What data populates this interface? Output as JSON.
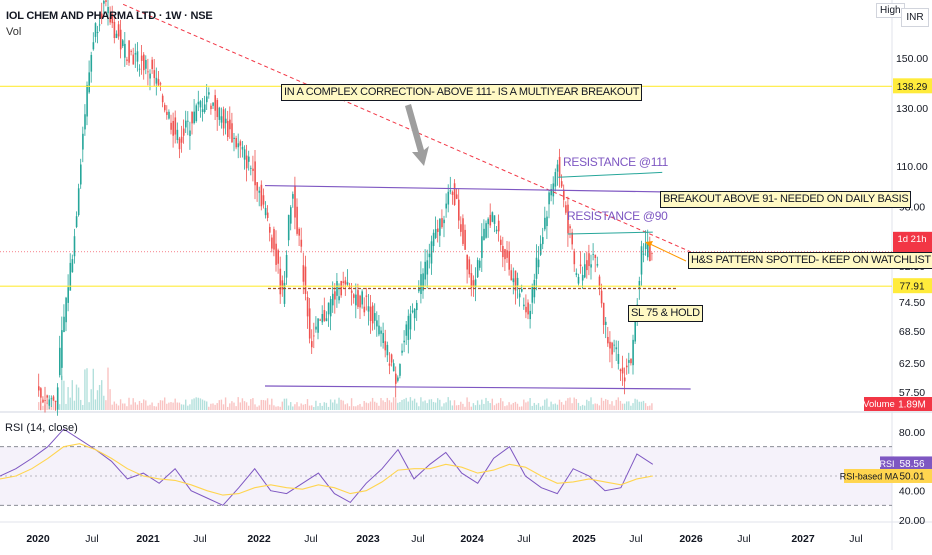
{
  "header": {
    "symbol": "IOL CHEM AND PHARMA LTD · 1W · NSE",
    "volume_label": "Vol",
    "rsi_label": "RSI (14, close)",
    "high_toggle": "High",
    "currency": "INR"
  },
  "annotations": {
    "correction": "IN A COMPLEX CORRECTION- ABOVE 111- IS A MULTIYEAR BREAKOUT",
    "resistance_111": "RESISTANCE @111",
    "breakout": "BREAKOUT ABOVE 91- NEEDED ON DAILY BASIS",
    "resistance_90": "RESISTANCE @90",
    "hs_pattern": "H&S PATTERN SPOTTED- KEEP ON WATCHLIST",
    "stop_loss": "SL 75 & HOLD"
  },
  "badges": {
    "price_tag": "1d 21h",
    "volume_tag": "Volume",
    "volume_value": "1.89M",
    "rsi_tag": "RSI",
    "rsi_value": "58.56",
    "rsi_ma_tag": "RSI-based MA",
    "rsi_ma_value": "50.01",
    "level_upper": "138.29",
    "level_lower": "77.91"
  },
  "colors": {
    "up": "#26a69a",
    "down": "#ef5350",
    "channel": "#7e57c2",
    "trendline": "#f23645",
    "yellow_level": "#ffeb3b",
    "rsi_line": "#7e57c2",
    "rsi_ma": "#ffd54f",
    "price_tag_bg": "#f23645"
  },
  "chart_data": [
    {
      "type": "candlestick",
      "x_ticks": [
        "2020",
        "Jul",
        "2021",
        "Jul",
        "2022",
        "Jul",
        "2023",
        "Jul",
        "2024",
        "Jul",
        "2025",
        "Jul",
        "2026",
        "Jul",
        "2027",
        "Jul"
      ],
      "y_ticks": [
        57.5,
        62.5,
        68.5,
        74.5,
        82.5,
        90.0,
        98.0,
        110.0,
        130.0,
        150.0
      ],
      "ylim": [
        54,
        185
      ],
      "y_scale": "log",
      "horizontal_levels": [
        138.29,
        77.91
      ],
      "approx_weekly_close_path": [
        {
          "date": "2020-01",
          "close": 57
        },
        {
          "date": "2020-03",
          "close": 56
        },
        {
          "date": "2020-05",
          "close": 90
        },
        {
          "date": "2020-07",
          "close": 160
        },
        {
          "date": "2020-08",
          "close": 175
        },
        {
          "date": "2020-10",
          "close": 155
        },
        {
          "date": "2021-01",
          "close": 145
        },
        {
          "date": "2021-04",
          "close": 118
        },
        {
          "date": "2021-07",
          "close": 135
        },
        {
          "date": "2021-10",
          "close": 118
        },
        {
          "date": "2021-12",
          "close": 108
        },
        {
          "date": "2022-01",
          "close": 98
        },
        {
          "date": "2022-02",
          "close": 88
        },
        {
          "date": "2022-03",
          "close": 75
        },
        {
          "date": "2022-04",
          "close": 103
        },
        {
          "date": "2022-06",
          "close": 66
        },
        {
          "date": "2022-09",
          "close": 78
        },
        {
          "date": "2022-12",
          "close": 74
        },
        {
          "date": "2023-03",
          "close": 60
        },
        {
          "date": "2023-06",
          "close": 82
        },
        {
          "date": "2023-09",
          "close": 103
        },
        {
          "date": "2023-11",
          "close": 78
        },
        {
          "date": "2024-01",
          "close": 96
        },
        {
          "date": "2024-03",
          "close": 82
        },
        {
          "date": "2024-05",
          "close": 72
        },
        {
          "date": "2024-08",
          "close": 111
        },
        {
          "date": "2024-10",
          "close": 80
        },
        {
          "date": "2024-12",
          "close": 86
        },
        {
          "date": "2025-01",
          "close": 70
        },
        {
          "date": "2025-03",
          "close": 60
        },
        {
          "date": "2025-04",
          "close": 64
        },
        {
          "date": "2025-05",
          "close": 88
        },
        {
          "date": "2025-06",
          "close": 85
        }
      ],
      "trendlines": [
        {
          "name": "descending",
          "from": {
            "date": "2020-10",
            "price": 175
          },
          "to": {
            "date": "2025-10",
            "price": 86
          }
        },
        {
          "name": "channel-top",
          "from": {
            "date": "2022-01",
            "price": 104
          },
          "to": {
            "date": "2025-10",
            "price": 102
          }
        },
        {
          "name": "channel-bottom",
          "from": {
            "date": "2022-01",
            "price": 58.5
          },
          "to": {
            "date": "2025-10",
            "price": 58
          }
        },
        {
          "name": "resistance-111",
          "from": {
            "date": "2024-08",
            "price": 106.5
          },
          "to": {
            "date": "2025-07",
            "price": 108
          }
        },
        {
          "name": "resistance-90",
          "from": {
            "date": "2024-09",
            "price": 90.5
          },
          "to": {
            "date": "2025-06",
            "price": 91
          }
        }
      ]
    },
    {
      "type": "line",
      "title": "RSI (14, close)",
      "y_ticks": [
        20.0,
        40.0,
        80.0
      ],
      "ylim": [
        18,
        85
      ],
      "bands": [
        70,
        30
      ],
      "series": [
        {
          "name": "RSI",
          "values": [
            50,
            55,
            62,
            70,
            82,
            75,
            68,
            60,
            48,
            52,
            45,
            55,
            40,
            35,
            30,
            42,
            55,
            40,
            38,
            45,
            52,
            38,
            32,
            45,
            55,
            68,
            48,
            58,
            66,
            52,
            45,
            62,
            70,
            50,
            42,
            38,
            55,
            50,
            40,
            42,
            65,
            58
          ]
        },
        {
          "name": "RSI-based MA",
          "values": [
            48,
            50,
            55,
            62,
            70,
            72,
            68,
            62,
            55,
            50,
            48,
            47,
            44,
            40,
            37,
            38,
            42,
            44,
            42,
            41,
            44,
            42,
            38,
            40,
            46,
            54,
            55,
            55,
            58,
            56,
            52,
            54,
            58,
            56,
            50,
            45,
            46,
            48,
            46,
            44,
            48,
            50
          ]
        }
      ]
    }
  ]
}
